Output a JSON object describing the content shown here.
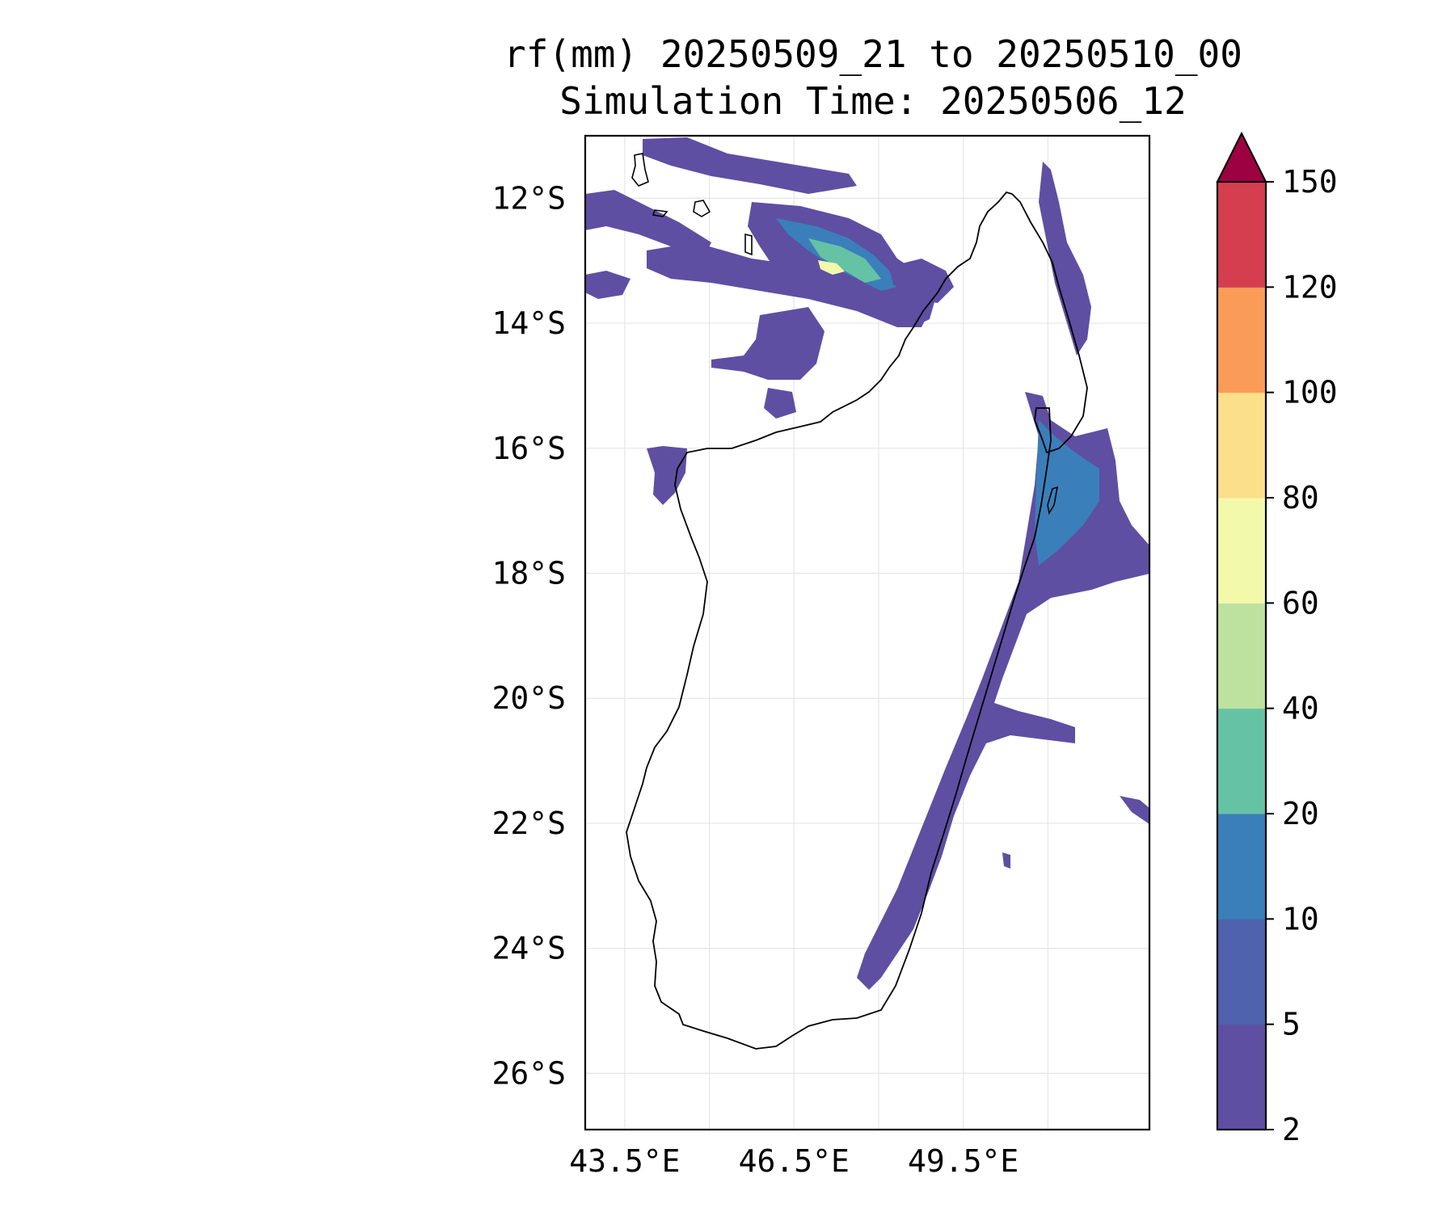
{
  "title": {
    "line1": "rf(mm) 20250509_21 to 20250510_00",
    "line2": "Simulation Time: 20250506_12"
  },
  "map": {
    "lon_range": [
      42.8,
      52.8
    ],
    "lat_range": [
      -11.0,
      -26.9
    ],
    "lat_tick_labels": [
      {
        "lat": -12,
        "label": "12°S"
      },
      {
        "lat": -14,
        "label": "14°S"
      },
      {
        "lat": -16,
        "label": "16°S"
      },
      {
        "lat": -18,
        "label": "18°S"
      },
      {
        "lat": -20,
        "label": "20°S"
      },
      {
        "lat": -22,
        "label": "22°S"
      },
      {
        "lat": -24,
        "label": "24°S"
      },
      {
        "lat": -26,
        "label": "26°S"
      }
    ],
    "lon_tick_labels": [
      {
        "lon": 43.5,
        "label": "43.5°E"
      },
      {
        "lon": 46.5,
        "label": "46.5°E"
      },
      {
        "lon": 49.5,
        "label": "49.5°E"
      }
    ],
    "extra_gridline_lons": [
      45.0,
      48.0,
      51.0
    ],
    "gridlines": true
  },
  "colorbar": {
    "levels": [
      "2",
      "5",
      "10",
      "20",
      "40",
      "60",
      "80",
      "100",
      "120",
      "150"
    ],
    "colors": [
      "#5e4fa2",
      "#4e62ad",
      "#3a7fba",
      "#66c2a5",
      "#bde2a0",
      "#f3f9ab",
      "#fbdf8a",
      "#fa9c58",
      "#d53e4f"
    ],
    "extend_color": "#9e0142",
    "extend": "max"
  },
  "colors": {
    "rain_low": "#5e4fa2",
    "rain_mid": "#3a7fba",
    "rain_high": "#66c2a5",
    "rain_peak": "#f3f9ab",
    "coastline": "#000000",
    "grid": "#e6e6e6"
  }
}
